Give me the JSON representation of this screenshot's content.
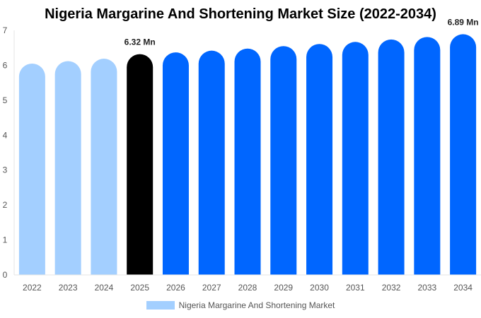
{
  "chart_data": {
    "type": "bar",
    "title": "Nigeria Margarine And Shortening Market Size (2022-2034)",
    "xlabel": "",
    "ylabel": "",
    "ylim": [
      0,
      7
    ],
    "y_ticks": [
      0,
      1,
      2,
      3,
      4,
      5,
      6,
      7
    ],
    "grid": false,
    "legend_position": "bottom",
    "categories": [
      "2022",
      "2023",
      "2024",
      "2025",
      "2026",
      "2027",
      "2028",
      "2029",
      "2030",
      "2031",
      "2032",
      "2033",
      "2034"
    ],
    "series": [
      {
        "name": "Nigeria Margarine And Shortening Market",
        "values": [
          6.05,
          6.12,
          6.19,
          6.32,
          6.37,
          6.42,
          6.48,
          6.55,
          6.61,
          6.67,
          6.74,
          6.81,
          6.89
        ]
      }
    ],
    "bar_colors": [
      "#a3cfff",
      "#a3cfff",
      "#a3cfff",
      "#000000",
      "#0066ff",
      "#0066ff",
      "#0066ff",
      "#0066ff",
      "#0066ff",
      "#0066ff",
      "#0066ff",
      "#0066ff",
      "#0066ff"
    ],
    "data_labels": [
      {
        "category": "2025",
        "text": "6.32 Mn"
      },
      {
        "category": "2034",
        "text": "6.89 Mn"
      }
    ],
    "legend": {
      "label": "Nigeria Margarine And Shortening Market",
      "color": "#a3cfff"
    }
  }
}
